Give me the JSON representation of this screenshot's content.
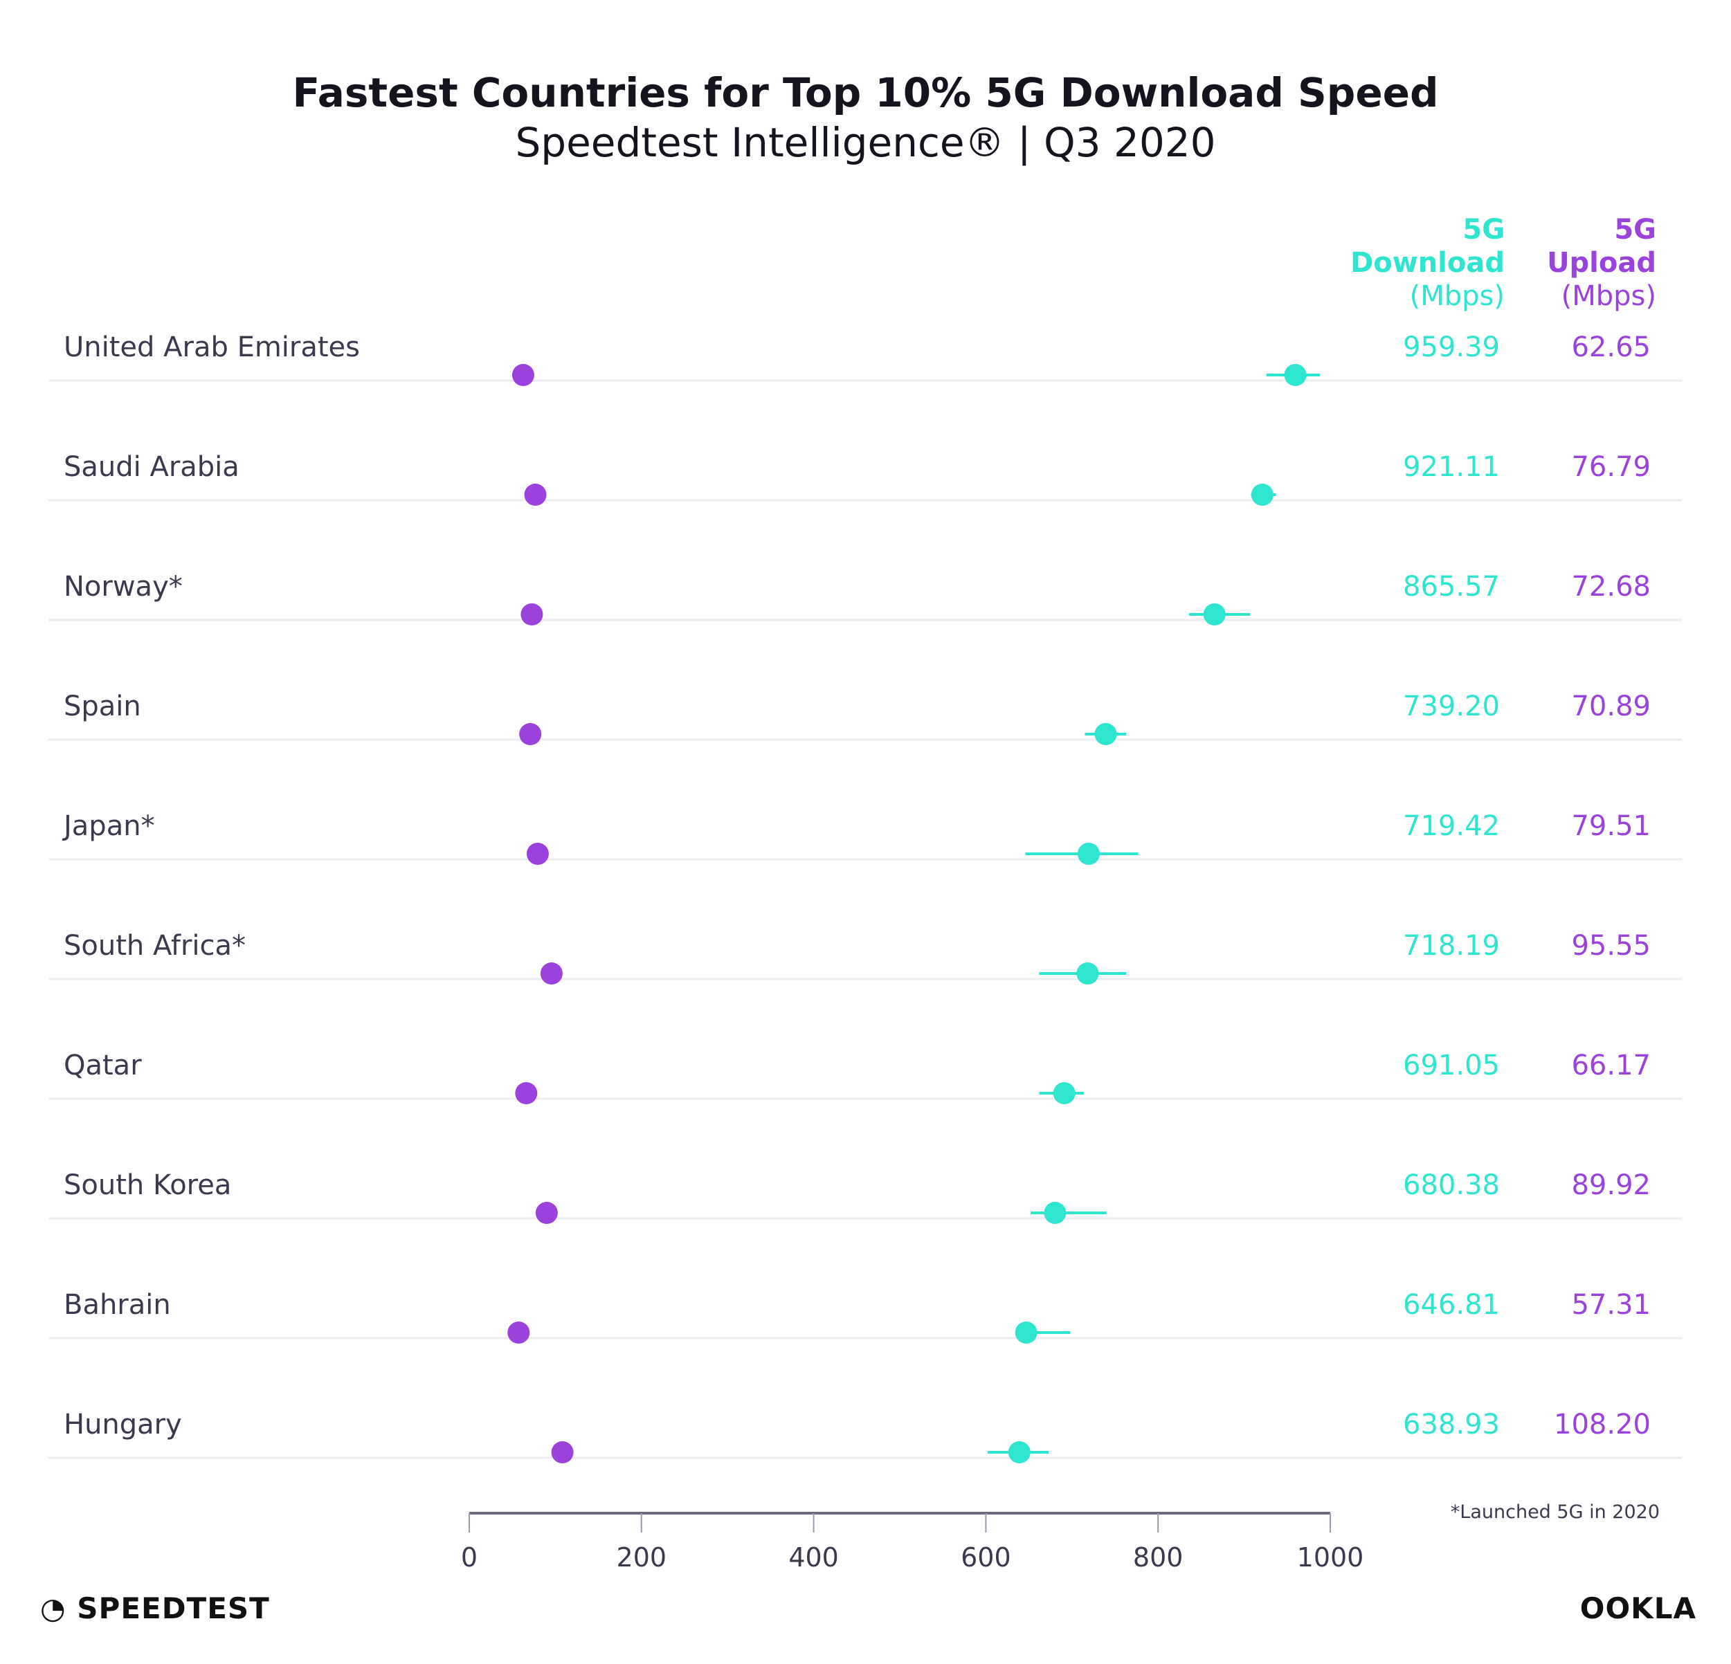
{
  "chart_data": {
    "type": "dot-plot",
    "title": "Fastest Countries for Top 10% 5G Download Speed",
    "subtitle": "Speedtest Intelligence® | Q3 2020",
    "column_headers": {
      "download": [
        "5G",
        "Download",
        "(Mbps)"
      ],
      "upload": [
        "5G",
        "Upload",
        "(Mbps)"
      ]
    },
    "categories": [
      "United Arab Emirates",
      "Saudi Arabia",
      "Norway*",
      "Spain",
      "Japan*",
      "South Africa*",
      "Qatar",
      "South Korea",
      "Bahrain",
      "Hungary"
    ],
    "series": [
      {
        "name": "5G Download (Mbps)",
        "color": "#2ee5d0",
        "values": [
          959.39,
          921.11,
          865.57,
          739.2,
          719.42,
          718.19,
          691.05,
          680.38,
          646.81,
          638.93
        ],
        "labels": [
          "959.39",
          "921.11",
          "865.57",
          "739.20",
          "719.42",
          "718.19",
          "691.05",
          "680.38",
          "646.81",
          "638.93"
        ],
        "error_ranges": [
          [
            926,
            988
          ],
          [
            908,
            937
          ],
          [
            836,
            907
          ],
          [
            715,
            763
          ],
          [
            646,
            777
          ],
          [
            662,
            763
          ],
          [
            662,
            714
          ],
          [
            652,
            740
          ],
          [
            644,
            698
          ],
          [
            602,
            673
          ]
        ]
      },
      {
        "name": "5G Upload (Mbps)",
        "color": "#9b42dc",
        "values": [
          62.65,
          76.79,
          72.68,
          70.89,
          79.51,
          95.55,
          66.17,
          89.92,
          57.31,
          108.2
        ],
        "labels": [
          "62.65",
          "76.79",
          "72.68",
          "70.89",
          "79.51",
          "95.55",
          "66.17",
          "89.92",
          "57.31",
          "108.20"
        ]
      }
    ],
    "xlim": [
      0,
      1000
    ],
    "xticks": [
      "0",
      "200",
      "400",
      "600",
      "800",
      "1000"
    ],
    "grid": false,
    "footnote": "*Launched 5G in 2020"
  },
  "logos": {
    "left": "SPEEDTEST",
    "right": "OOKLA"
  }
}
